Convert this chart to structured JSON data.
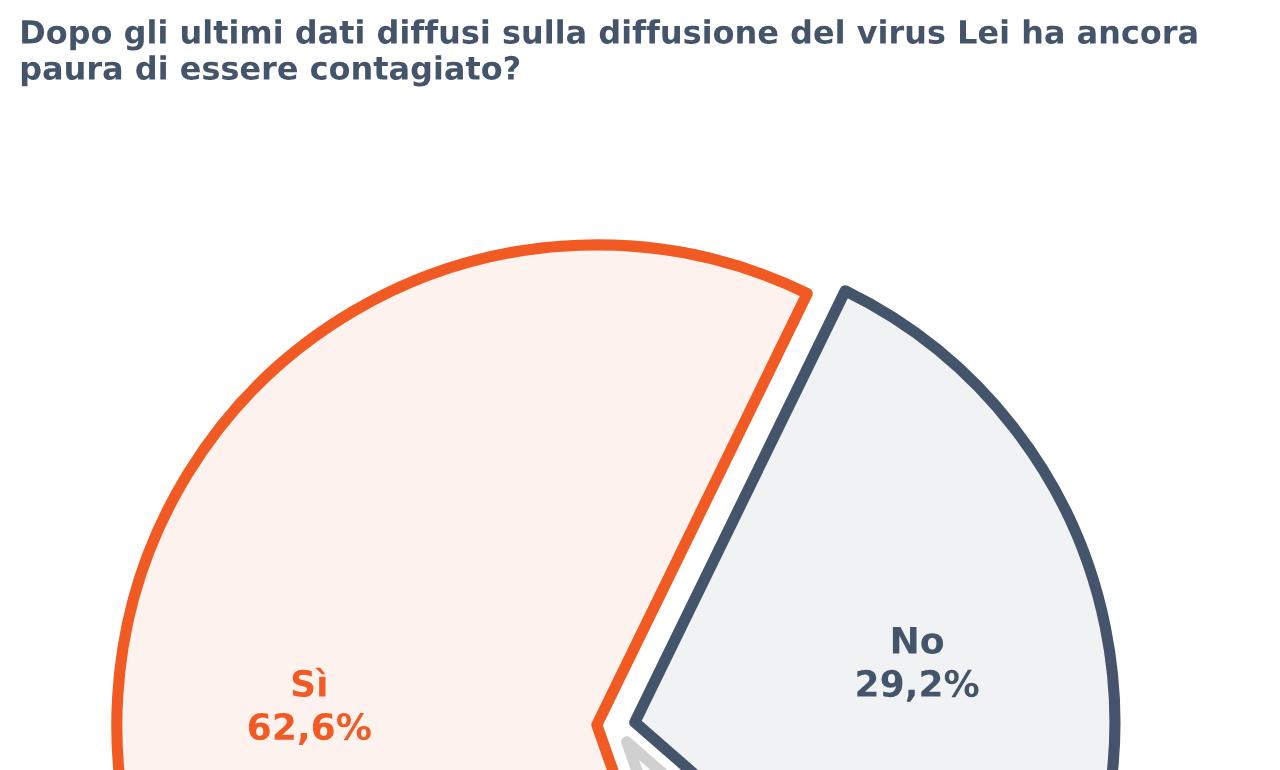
{
  "chart_data": {
    "type": "pie",
    "title": "Dopo gli ultimi dati diffusi sulla diffusione del virus Lei ha ancora paura di essere contagiato?",
    "categories": [
      "Sì",
      null,
      "No"
    ],
    "values": [
      62.6,
      8.2,
      29.2
    ],
    "value_labels": [
      "62,6%",
      null,
      "29,2%"
    ],
    "colors": [
      "#f15a22",
      "#d0d0d0",
      "#44546a"
    ]
  }
}
